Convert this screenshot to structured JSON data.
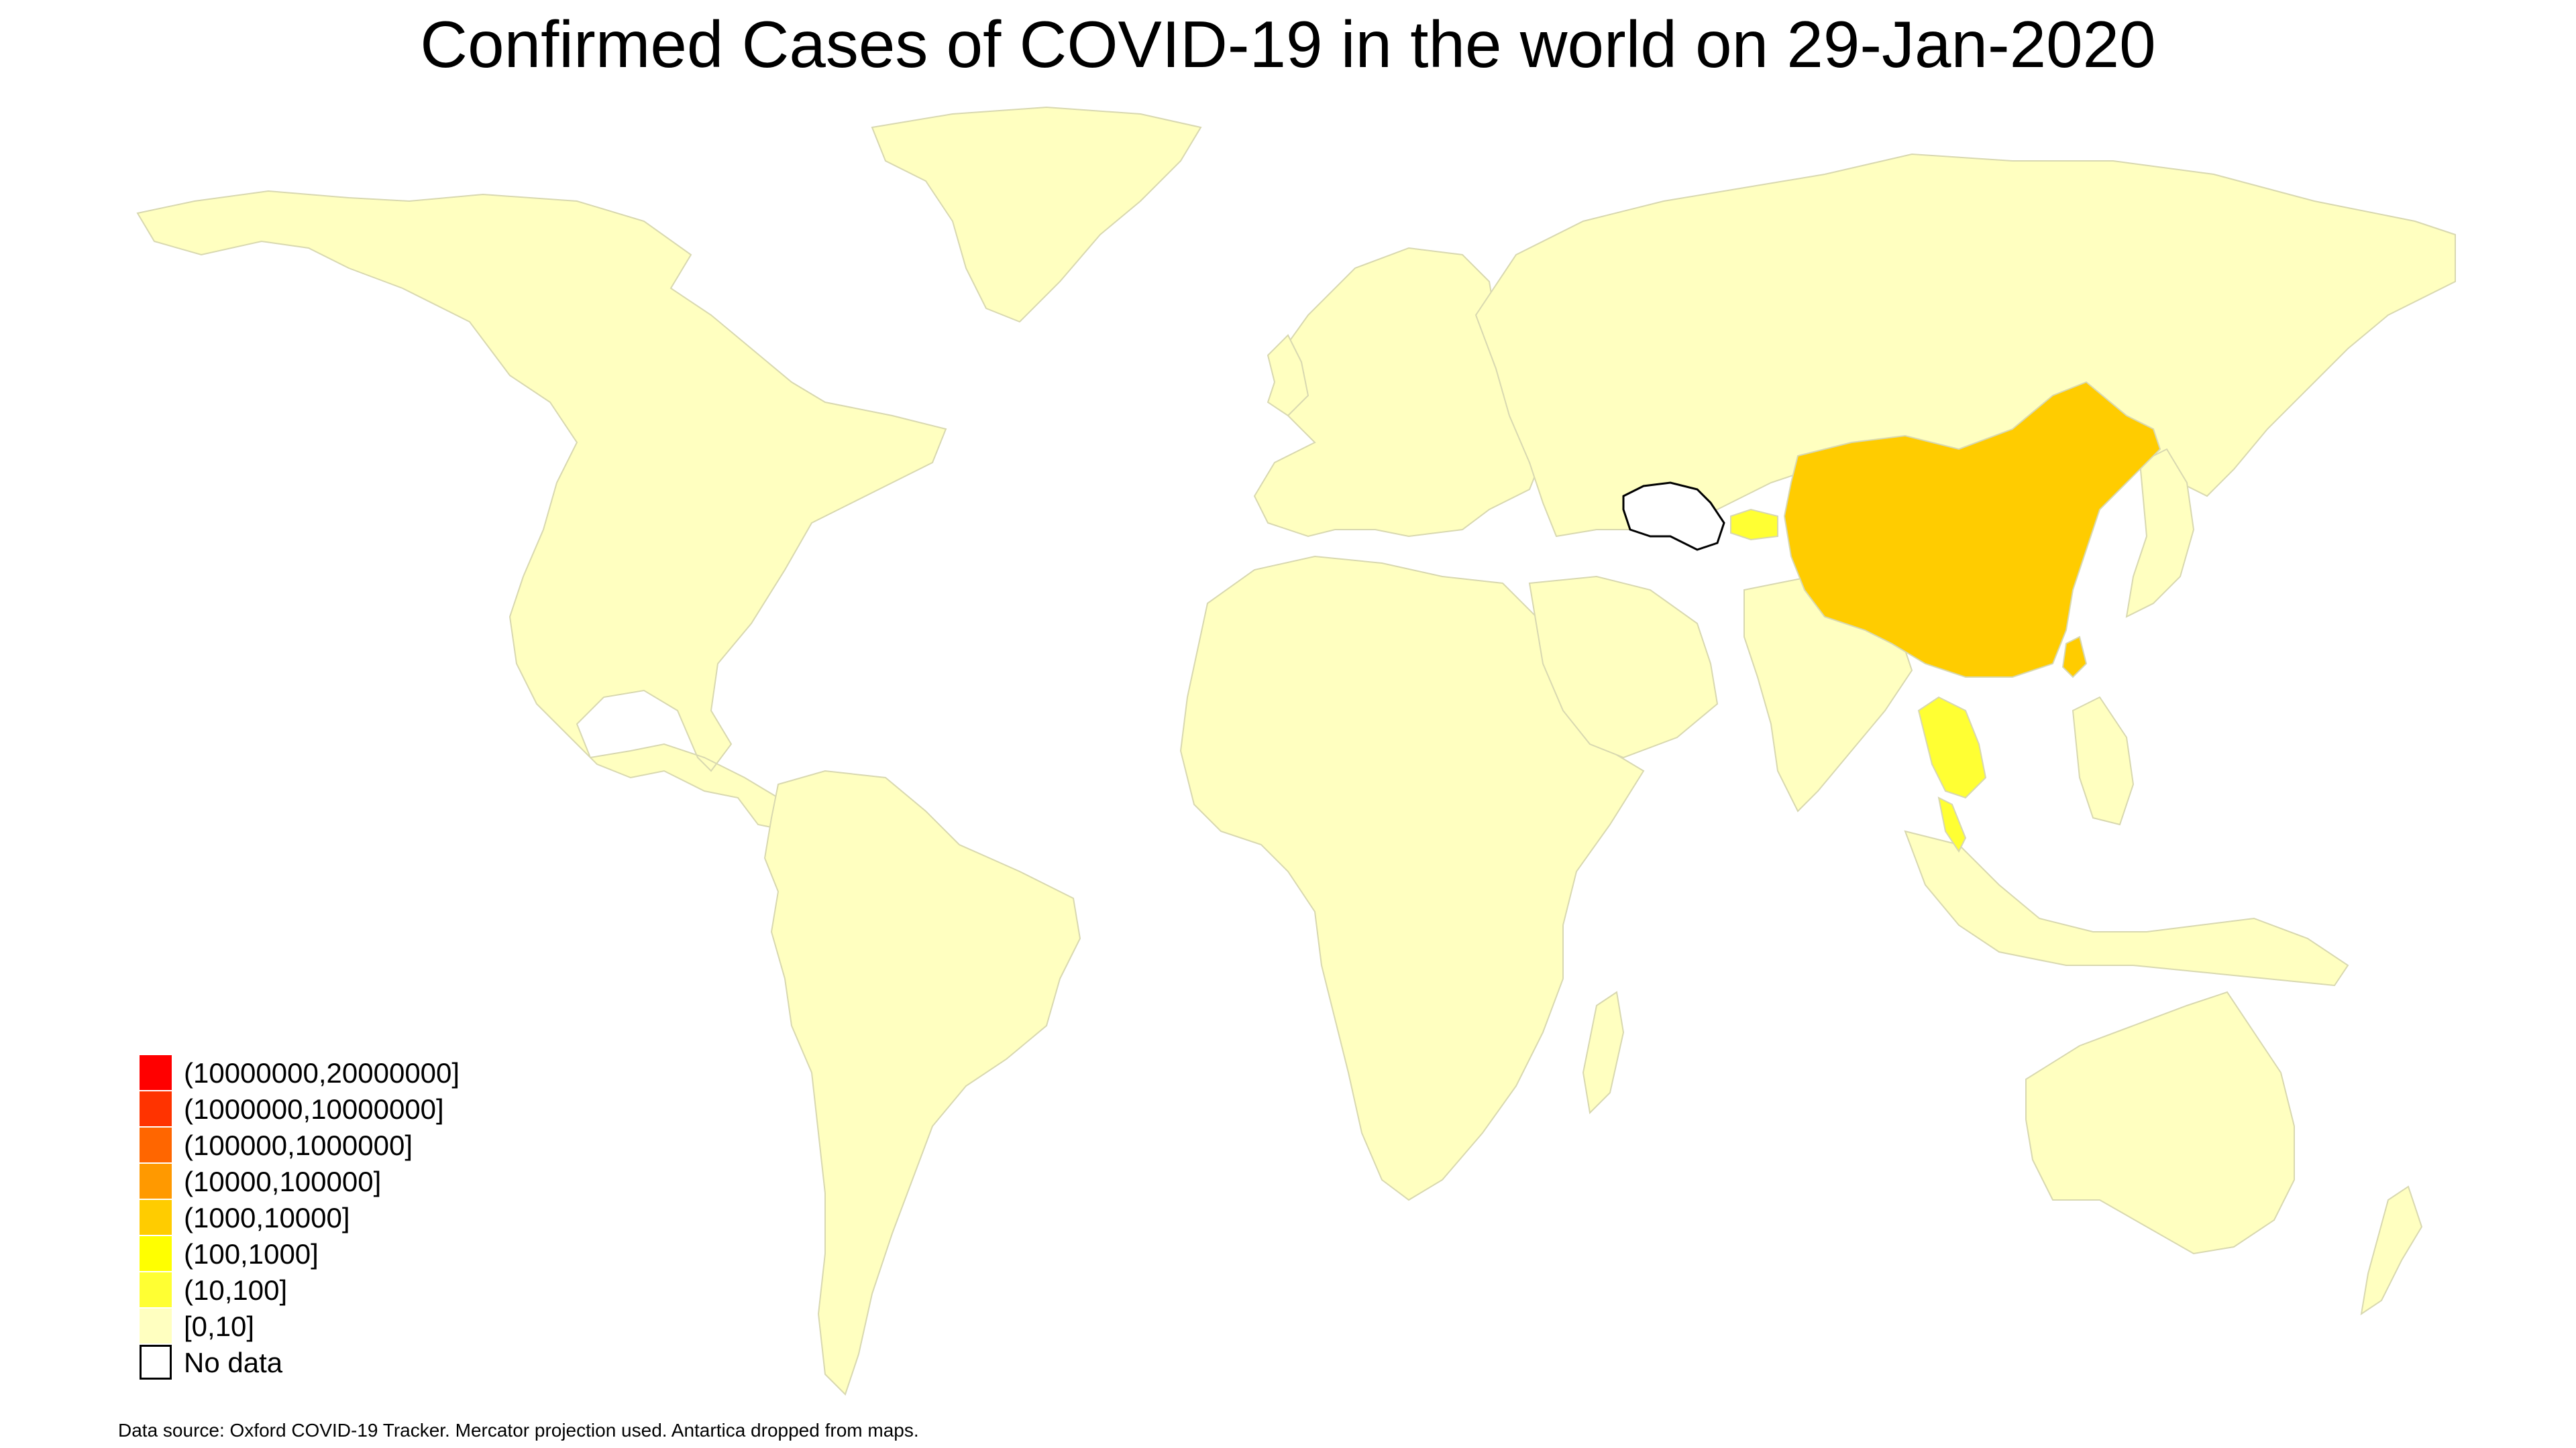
{
  "title": "Confirmed Cases of COVID-19 in the world on 29-Jan-2020",
  "source_note": "Data source: Oxford COVID-19 Tracker. Mercator projection used. Antartica dropped from maps.",
  "colors": {
    "border": "#d8d8b0",
    "nodata_border": "#000000",
    "ocean": "#ffffff"
  },
  "legend": [
    {
      "label": "(10000000,20000000]",
      "color": "#ff0000"
    },
    {
      "label": "(1000000,10000000]",
      "color": "#ff3300"
    },
    {
      "label": "(100000,1000000]",
      "color": "#ff6600"
    },
    {
      "label": "(10000,100000]",
      "color": "#ff9900"
    },
    {
      "label": "(1000,10000]",
      "color": "#ffcc00"
    },
    {
      "label": "(100,1000]",
      "color": "#ffff00"
    },
    {
      "label": "(10,100]",
      "color": "#ffff33"
    },
    {
      "label": "[0,10]",
      "color": "#ffffc0"
    },
    {
      "label": "No data",
      "color": "#ffffff"
    }
  ],
  "regions": [
    {
      "name": "North America",
      "bin": "[0,10]"
    },
    {
      "name": "Greenland",
      "bin": "[0,10]"
    },
    {
      "name": "South America",
      "bin": "[0,10]"
    },
    {
      "name": "Europe",
      "bin": "[0,10]"
    },
    {
      "name": "Africa",
      "bin": "[0,10]"
    },
    {
      "name": "Madagascar",
      "bin": "[0,10]"
    },
    {
      "name": "Russia and Asia",
      "bin": "[0,10]"
    },
    {
      "name": "Arabian Peninsula",
      "bin": "[0,10]"
    },
    {
      "name": "India",
      "bin": "[0,10]"
    },
    {
      "name": "Japan",
      "bin": "[0,10]"
    },
    {
      "name": "Indonesia",
      "bin": "[0,10]"
    },
    {
      "name": "Philippines",
      "bin": "[0,10]"
    },
    {
      "name": "Australia",
      "bin": "[0,10]"
    },
    {
      "name": "New Zealand",
      "bin": "[0,10]"
    },
    {
      "name": "United Kingdom",
      "bin": "[0,10]"
    },
    {
      "name": "China",
      "bin": "(1000,10000]"
    },
    {
      "name": "Taiwan",
      "bin": "(1000,10000]"
    },
    {
      "name": "Thailand",
      "bin": "(10,100]"
    },
    {
      "name": "Malay Peninsula",
      "bin": "(10,100]"
    },
    {
      "name": "Tajikistan",
      "bin": "(10,100]"
    },
    {
      "name": "Turkmenistan",
      "bin": "No data"
    }
  ]
}
